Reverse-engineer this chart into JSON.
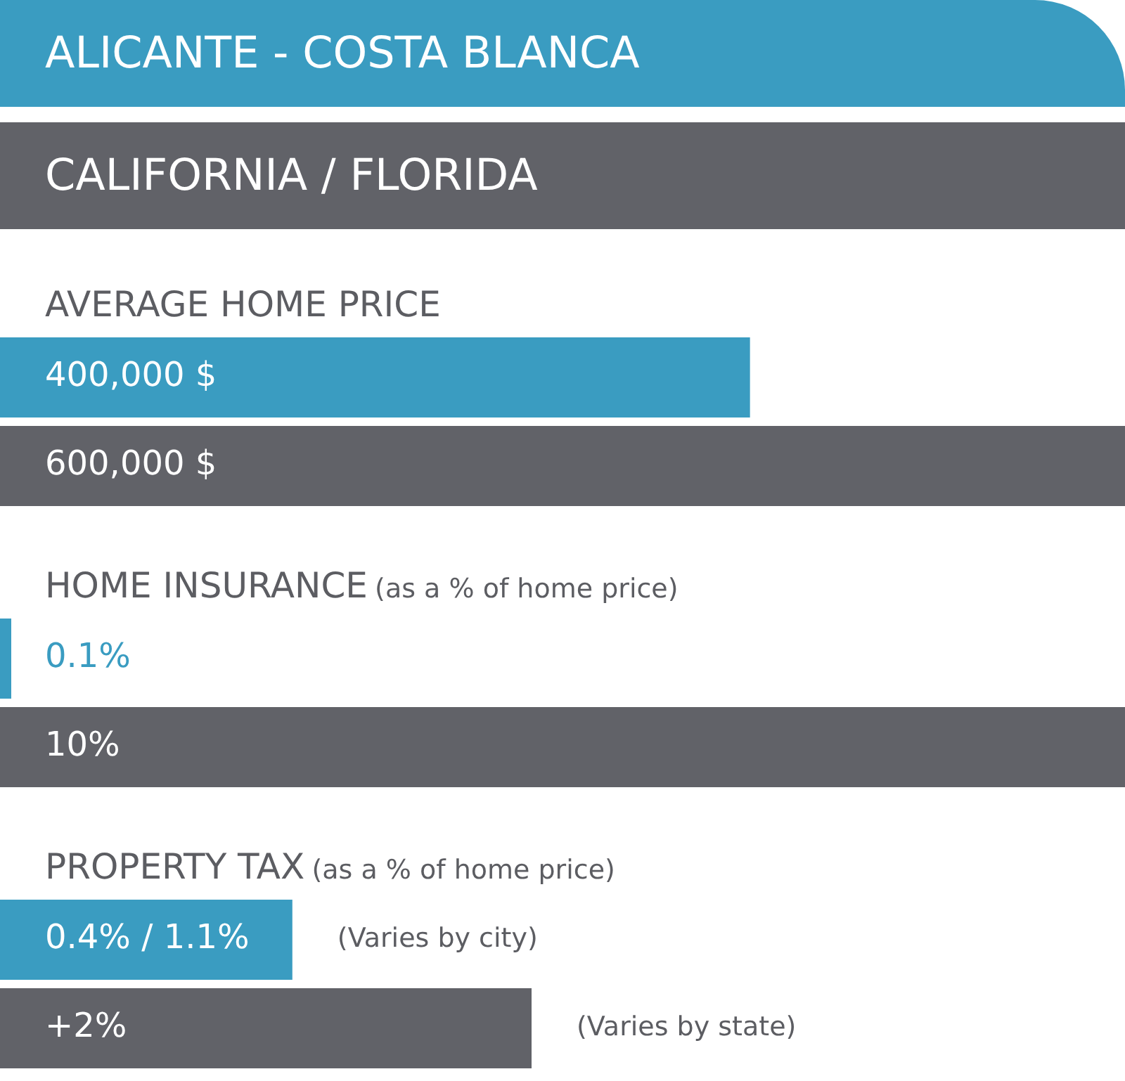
{
  "chart_data": [
    {
      "type": "bar",
      "orientation": "horizontal",
      "title": "AVERAGE HOME PRICE",
      "categories": [
        null
      ],
      "series": [
        {
          "name": "ALICANTE - COSTA BLANCA",
          "color": "#3a9cc1",
          "values": [
            400000
          ],
          "value_labels": [
            "400,000 $"
          ]
        },
        {
          "name": "CALIFORNIA / FLORIDA",
          "color": "#616268",
          "values": [
            600000
          ],
          "value_labels": [
            "600,000 $"
          ]
        }
      ],
      "xlim": [
        0,
        600000
      ],
      "tick_labels": false,
      "legend": "top"
    },
    {
      "type": "bar",
      "orientation": "horizontal",
      "title": "HOME INSURANCE",
      "subtitle": "(as a % of home price)",
      "categories": [
        null
      ],
      "series": [
        {
          "color": "#3a9cc1",
          "values": [
            0.1
          ],
          "value_labels": [
            "0.1%"
          ]
        },
        {
          "color": "#616268",
          "values": [
            10
          ],
          "value_labels": [
            "10%"
          ]
        }
      ],
      "xlim": [
        0,
        10
      ],
      "tick_labels": false
    },
    {
      "type": "bar",
      "orientation": "horizontal",
      "title": "PROPERTY TAX",
      "subtitle": "(as a % of home price)",
      "categories": [
        null
      ],
      "series": [
        {
          "color": "#3a9cc1",
          "values": [
            1.1
          ],
          "value_labels": [
            "0.4% / 1.1%"
          ]
        },
        {
          "color": "#616268",
          "values": [
            2
          ],
          "value_labels": [
            "+2%"
          ]
        }
      ],
      "xlim": [
        0,
        2
      ],
      "tick_labels": false,
      "annotations": [
        "(Varies by city)",
        "(Varies by state)"
      ]
    }
  ]
}
